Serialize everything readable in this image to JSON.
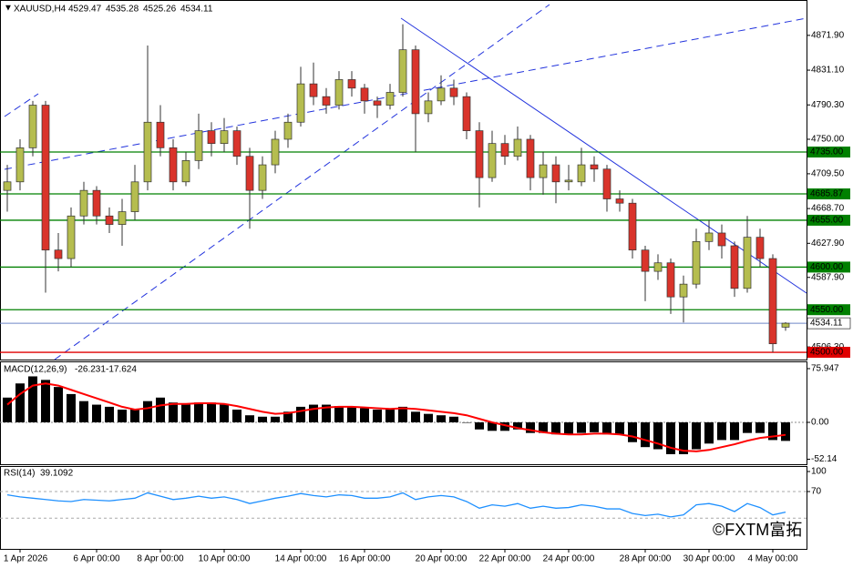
{
  "chart_data": [
    {
      "type": "candlestick",
      "title": "XAUUSD,H4",
      "categories": [
        null,
        "1 Apr 2026",
        null,
        null,
        null,
        null,
        null,
        "6 Apr 00:00",
        null,
        null,
        null,
        null,
        "8 Apr 00:00",
        null,
        null,
        null,
        null,
        "10 Apr 00:00",
        null,
        null,
        null,
        null,
        null,
        "14 Apr 00:00",
        null,
        null,
        null,
        null,
        "16 Apr 00:00",
        null,
        null,
        null,
        null,
        null,
        "20 Apr 00:00",
        null,
        null,
        null,
        null,
        "22 Apr 00:00",
        null,
        null,
        null,
        null,
        "24 Apr 00:00",
        null,
        null,
        null,
        null,
        null,
        "28 Apr 00:00",
        null,
        null,
        null,
        null,
        "30 Apr 00:00",
        null,
        null,
        null,
        null,
        "4 May 00:00",
        null
      ],
      "open": [
        4690,
        4700,
        4740,
        4790,
        4620,
        4610,
        4660,
        4690,
        4660,
        4650,
        4665,
        4700,
        4770,
        4740,
        4700,
        4725,
        4760,
        4745,
        4760,
        4730,
        4690,
        4720,
        4750,
        4770,
        4815,
        4800,
        4790,
        4820,
        4810,
        4795,
        4790,
        4805,
        4855,
        4780,
        4795,
        4810,
        4800,
        4760,
        4705,
        4745,
        4730,
        4750,
        4705,
        4720,
        4700,
        4700,
        4720,
        4715,
        4680,
        4675,
        4620,
        4595,
        4605,
        4565,
        4580,
        4630,
        4640,
        4625,
        4575,
        4635,
        4610,
        4529.47
      ],
      "high": [
        4720,
        4750,
        4795,
        4795,
        4640,
        4670,
        4700,
        4695,
        4670,
        4680,
        4720,
        4860,
        4790,
        4750,
        4735,
        4780,
        4770,
        4775,
        4765,
        4740,
        4730,
        4760,
        4780,
        4835,
        4840,
        4810,
        4830,
        4830,
        4815,
        4800,
        4815,
        4885,
        4860,
        4805,
        4825,
        4820,
        4805,
        4770,
        4760,
        4755,
        4765,
        4755,
        4735,
        4730,
        4720,
        4740,
        4730,
        4720,
        4690,
        4680,
        4625,
        4615,
        4610,
        4590,
        4645,
        4655,
        4650,
        4630,
        4660,
        4645,
        4615,
        4535.28
      ],
      "low": [
        4665,
        4690,
        4730,
        4570,
        4595,
        4600,
        4650,
        4650,
        4640,
        4625,
        4655,
        4690,
        4730,
        4690,
        4695,
        4715,
        4730,
        4735,
        4720,
        4645,
        4680,
        4710,
        4740,
        4765,
        4790,
        4780,
        4785,
        4800,
        4780,
        4775,
        4785,
        4800,
        4735,
        4770,
        4790,
        4790,
        4750,
        4670,
        4700,
        4720,
        4725,
        4690,
        4685,
        4675,
        4690,
        4695,
        4700,
        4665,
        4665,
        4610,
        4560,
        4585,
        4545,
        4535,
        4575,
        4620,
        4610,
        4565,
        4570,
        4600,
        4500,
        4525.26
      ],
      "close": [
        4700,
        4740,
        4790,
        4620,
        4610,
        4660,
        4690,
        4660,
        4650,
        4665,
        4700,
        4770,
        4740,
        4700,
        4725,
        4760,
        4745,
        4760,
        4730,
        4690,
        4720,
        4750,
        4770,
        4815,
        4800,
        4790,
        4820,
        4810,
        4795,
        4790,
        4805,
        4855,
        4780,
        4795,
        4810,
        4800,
        4760,
        4705,
        4745,
        4730,
        4750,
        4705,
        4720,
        4700,
        4702,
        4720,
        4715,
        4680,
        4675,
        4620,
        4595,
        4605,
        4565,
        4580,
        4630,
        4640,
        4625,
        4575,
        4635,
        4610,
        4510,
        4534.11
      ],
      "up_color": "#b5bd4f",
      "down_color": "#d9342b",
      "current_color": "#6f86c8",
      "ylim": [
        4491.5,
        4913.4
      ],
      "yticks": [
        {
          "value": 4871.9,
          "label": "4871.90"
        },
        {
          "value": 4831.1,
          "label": "4831.10"
        },
        {
          "value": 4790.3,
          "label": "4790.30"
        },
        {
          "value": 4750,
          "label": "4750.00"
        },
        {
          "value": 4709.5,
          "label": "4709.50"
        },
        {
          "value": 4668.7,
          "label": "4668.70"
        },
        {
          "value": 4627.9,
          "label": "4627.90"
        },
        {
          "value": 4587.9,
          "label": "4587.90"
        },
        {
          "value": 4506.3,
          "label": "4506.30"
        }
      ],
      "hlines": [
        {
          "value": 4735,
          "label": "4735.00",
          "color": "#008000"
        },
        {
          "value": 4685.87,
          "label": "4685.87",
          "color": "#008000"
        },
        {
          "value": 4655,
          "label": "4655.00",
          "color": "#008000"
        },
        {
          "value": 4600,
          "label": "4600.00",
          "color": "#008000"
        },
        {
          "value": 4550,
          "label": "4550.00",
          "color": "#008000"
        },
        {
          "value": 4500,
          "label": "4500.00",
          "color": "#e00000"
        }
      ]
    },
    {
      "type": "macd",
      "title": "MACD(12,26,9)",
      "series": [
        {
          "color": "#000000",
          "values": [
            35,
            55,
            65,
            60,
            50,
            40,
            30,
            25,
            22,
            18,
            18,
            30,
            35,
            28,
            25,
            28,
            28,
            25,
            18,
            10,
            8,
            8,
            15,
            22,
            25,
            25,
            23,
            22,
            20,
            18,
            18,
            22,
            15,
            12,
            10,
            8,
            0,
            -10,
            -12,
            -12,
            -10,
            -15,
            -15,
            -17,
            -18,
            -15,
            -14,
            -17,
            -18,
            -28,
            -35,
            -38,
            -45,
            -45,
            -38,
            -30,
            -25,
            -25,
            -15,
            -15,
            -25,
            -26.231
          ]
        },
        {
          "color": "#ff0000",
          "values": [
            25,
            40,
            52,
            55,
            52,
            46,
            40,
            34,
            28,
            22,
            18,
            20,
            24,
            26,
            26,
            27,
            27,
            26,
            23,
            19,
            15,
            12,
            13,
            16,
            19,
            21,
            22,
            22,
            21,
            20,
            19,
            20,
            19,
            17,
            15,
            13,
            10,
            5,
            0,
            -4,
            -8,
            -11,
            -14,
            -16,
            -17,
            -17,
            -16,
            -16,
            -17,
            -20,
            -25,
            -30,
            -36,
            -40,
            -41,
            -39,
            -35,
            -31,
            -26,
            -22,
            -20,
            -17.624
          ]
        }
      ],
      "ylim": [
        -59.2,
        86.2
      ],
      "yticks": [
        75.947,
        {
          "value": 0,
          "label": "0.00"
        },
        -52.14
      ]
    },
    {
      "type": "line",
      "title": "RSI(14)",
      "color": "#1e90ff",
      "values": [
        65,
        62,
        60,
        58,
        56,
        55,
        58,
        57,
        56,
        58,
        60,
        68,
        63,
        58,
        60,
        63,
        60,
        62,
        58,
        52,
        56,
        60,
        63,
        67,
        64,
        62,
        65,
        64,
        60,
        60,
        62,
        68,
        58,
        62,
        64,
        62,
        55,
        45,
        50,
        48,
        52,
        45,
        48,
        45,
        46,
        50,
        48,
        44,
        44,
        37,
        34,
        36,
        32,
        35,
        50,
        52,
        48,
        40,
        52,
        46,
        35,
        39.1092
      ],
      "levels": [
        70,
        30
      ],
      "ylim": [
        -16,
        108.2
      ],
      "yticks": [
        100,
        70
      ]
    }
  ],
  "watermark": "©FXTM富拓"
}
